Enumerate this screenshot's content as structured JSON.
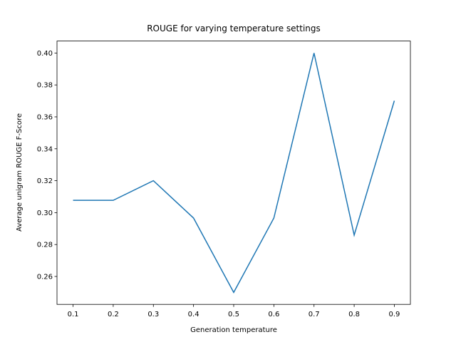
{
  "chart_data": {
    "type": "line",
    "title": "ROUGE for varying temperature settings",
    "x_label": "Generation temperature",
    "y_label": "Average unigram ROUGE F-Score",
    "x": [
      0.1,
      0.2,
      0.3,
      0.4,
      0.5,
      0.6,
      0.7,
      0.8,
      0.9
    ],
    "series": [
      {
        "color": "#1f77b4",
        "values": [
          0.3077,
          0.3077,
          0.32,
          0.2966,
          0.25,
          0.2966,
          0.4,
          0.2859,
          0.3701
        ]
      }
    ],
    "xlim": [
      0.06,
      0.94
    ],
    "ylim": [
      0.2425,
      0.4075
    ],
    "xticks": [
      0.1,
      0.2,
      0.3,
      0.4,
      0.5,
      0.6,
      0.7,
      0.8,
      0.9
    ],
    "yticks": [
      0.26,
      0.28,
      {
        "value": 0.3,
        "label": "0.30"
      },
      0.32,
      0.34,
      0.36,
      0.38,
      {
        "value": 0.4,
        "label": "0.40"
      }
    ],
    "grid": false
  }
}
